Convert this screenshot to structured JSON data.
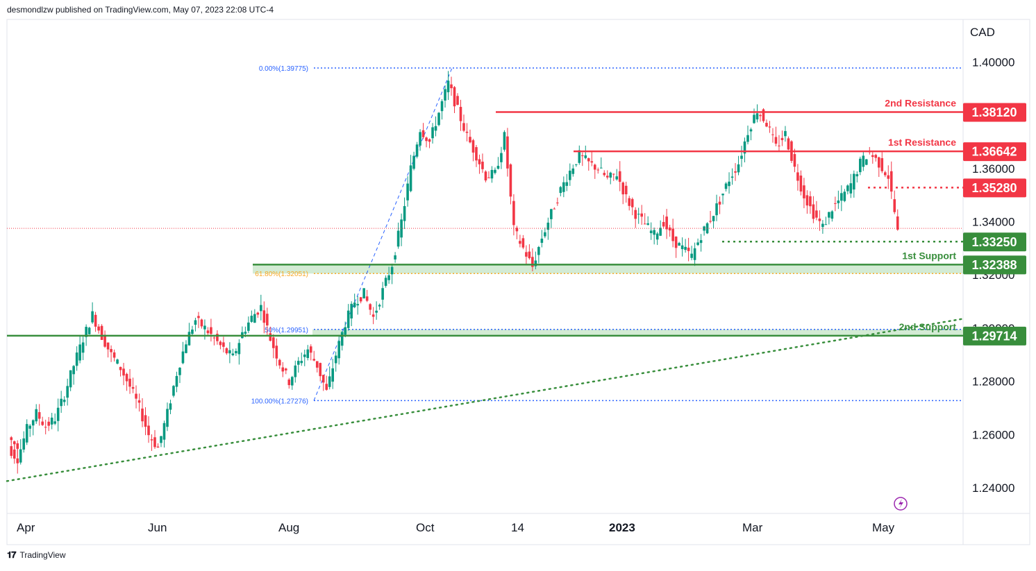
{
  "header": {
    "published_line": "desmondlzw published on TradingView.com, May 07, 2023 22:08 UTC-4"
  },
  "footer": {
    "logo_icon": "tradingview-logo-icon",
    "brand": "TradingView"
  },
  "colors": {
    "bull": "#089981",
    "bear": "#f23645",
    "resistance": "#f23645",
    "support": "#388e3c",
    "support_zone": "#c8e6c9",
    "fib": "#2962ff",
    "fib_618": "#f9a825",
    "grid": "#e0e3eb",
    "current_price": "#f23645",
    "alert": "#9c27b0"
  },
  "chart_data": {
    "type": "candlestick",
    "symbol_currency": "CAD",
    "ylim": [
      1.2325,
      1.4085
    ],
    "y_ticks": [
      1.24,
      1.26,
      1.28,
      1.3,
      1.32,
      1.34,
      1.36,
      1.4
    ],
    "y_tick_labels": [
      "1.24000",
      "1.26000",
      "1.28000",
      "1.30000",
      "1.32000",
      "1.34000",
      "1.36000",
      "1.40000"
    ],
    "x_labels": [
      "Apr",
      "Jun",
      "Aug",
      "Oct",
      "14",
      "2023",
      "Mar",
      "May"
    ],
    "x_label_bold": "2023",
    "grid": false,
    "current_price": 1.3375,
    "levels": [
      {
        "name": "2nd Resistance",
        "price": 1.3812,
        "label": "1.38120",
        "kind": "resistance",
        "style": "solid"
      },
      {
        "name": "1st Resistance",
        "price": 1.36642,
        "label": "1.36642",
        "kind": "resistance",
        "style": "solid"
      },
      {
        "name": "",
        "price": 1.3528,
        "label": "1.35280",
        "kind": "resistance",
        "style": "dotted"
      },
      {
        "name": "",
        "price": 1.3325,
        "label": "1.33250",
        "kind": "support",
        "style": "dotted"
      },
      {
        "name": "1st Support",
        "price": 1.32388,
        "label": "1.32388",
        "kind": "support",
        "style": "solid"
      },
      {
        "name": "2nd Support",
        "price": 1.29714,
        "label": "1.29714",
        "kind": "support",
        "style": "solid"
      }
    ],
    "fibonacci": [
      {
        "label": "0.00%(1.39775)",
        "price": 1.39775
      },
      {
        "label": "61.80%(1.32051)",
        "price": 1.32051
      },
      {
        "label": "50%(1.29951)",
        "price": 1.29951
      },
      {
        "label": "100.00%(1.27276)",
        "price": 1.27276
      }
    ],
    "trendline": {
      "from": {
        "x": "Mar 2022",
        "y": 1.2425
      },
      "to": {
        "x": "May 2023",
        "y": 1.3035
      },
      "style": "dotted"
    },
    "close_path": [
      1.255,
      1.251,
      1.262,
      1.268,
      1.263,
      1.266,
      1.275,
      1.286,
      1.296,
      1.305,
      1.297,
      1.29,
      1.285,
      1.278,
      1.27,
      1.26,
      1.255,
      1.268,
      1.283,
      1.295,
      1.303,
      1.3,
      1.296,
      1.292,
      1.289,
      1.298,
      1.304,
      1.308,
      1.296,
      1.287,
      1.28,
      1.287,
      1.292,
      1.286,
      1.276,
      1.29,
      1.302,
      1.31,
      1.313,
      1.304,
      1.314,
      1.324,
      1.34,
      1.36,
      1.375,
      1.37,
      1.381,
      1.392,
      1.382,
      1.372,
      1.365,
      1.357,
      1.358,
      1.372,
      1.337,
      1.33,
      1.323,
      1.334,
      1.343,
      1.352,
      1.359,
      1.365,
      1.362,
      1.36,
      1.356,
      1.358,
      1.349,
      1.343,
      1.339,
      1.335,
      1.34,
      1.333,
      1.33,
      1.327,
      1.335,
      1.341,
      1.348,
      1.356,
      1.362,
      1.374,
      1.382,
      1.377,
      1.368,
      1.373,
      1.36,
      1.35,
      1.343,
      1.338,
      1.345,
      1.349,
      1.354,
      1.362,
      1.366,
      1.362,
      1.357,
      1.337
    ]
  }
}
